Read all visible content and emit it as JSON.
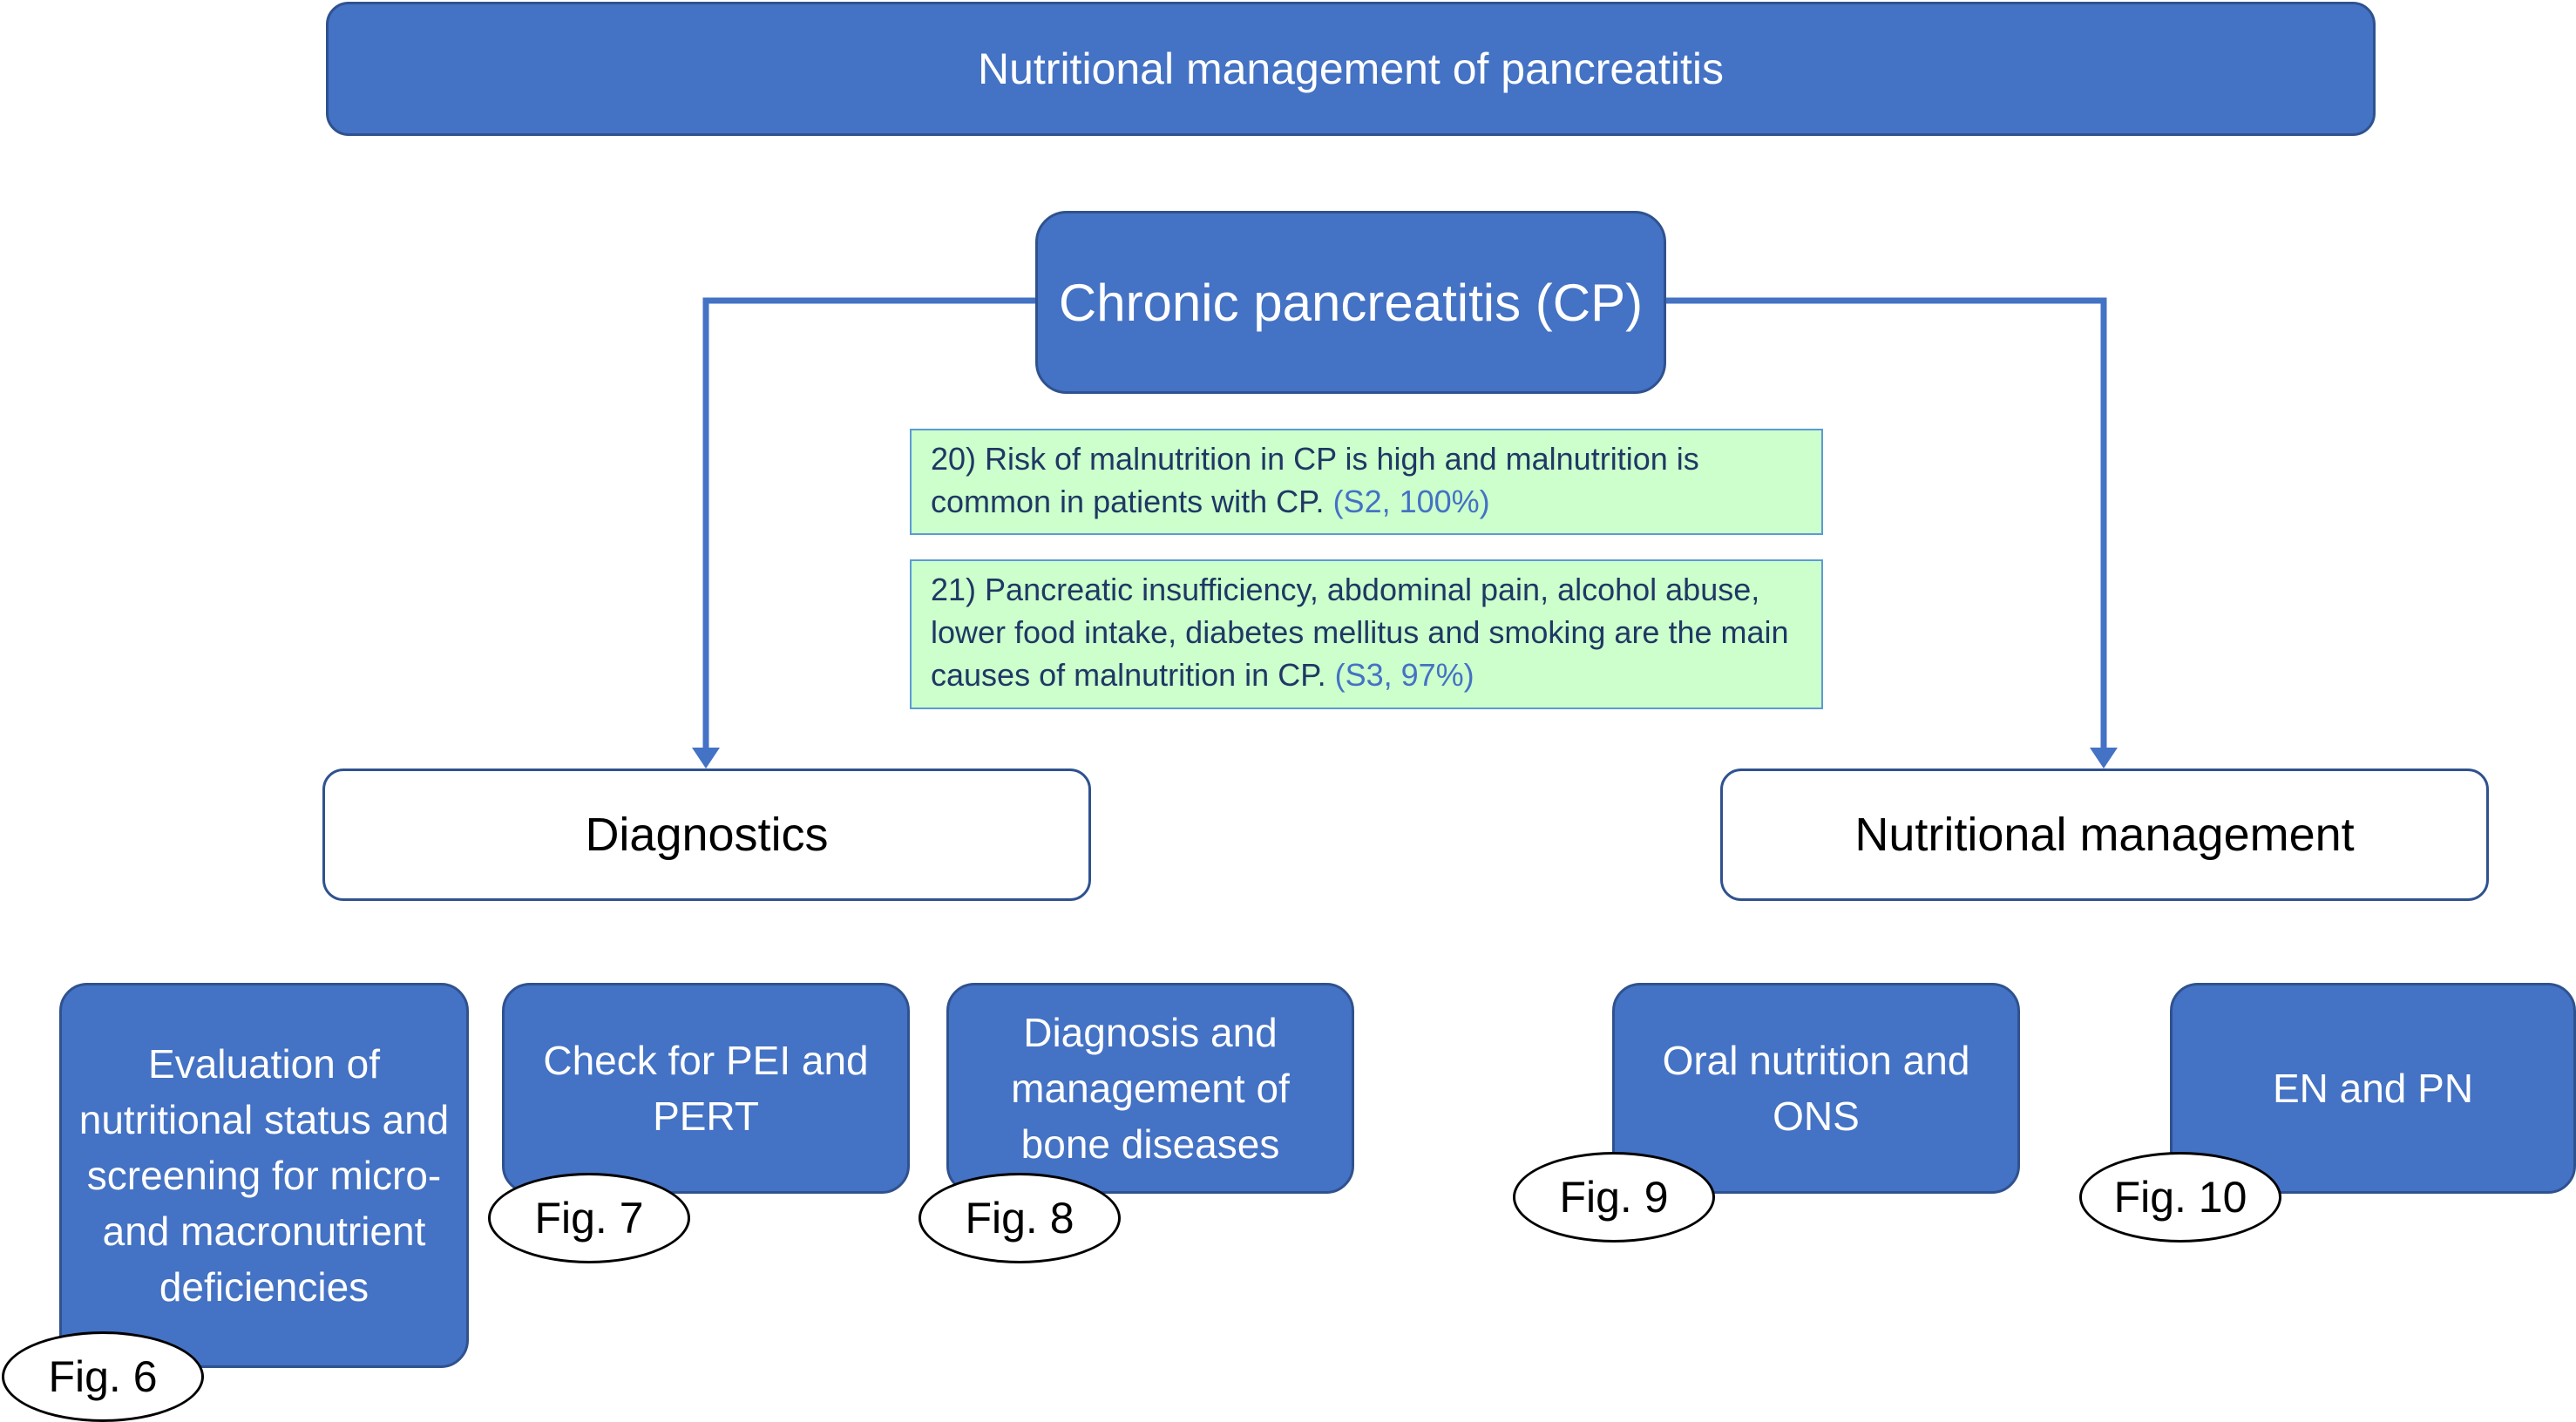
{
  "title": "Nutritional management of pancreatitis",
  "center": {
    "label": "Chronic pancreatitis (CP)"
  },
  "statements": [
    {
      "text": "20) Risk of malnutrition in CP is high and malnutrition is common in patients with CP.",
      "ref": "(S2, 100%)"
    },
    {
      "text": "21) Pancreatic insufficiency, abdominal pain, alcohol abuse, lower food intake, diabetes mellitus and smoking are the main causes of malnutrition in CP.",
      "ref": "(S3, 97%)"
    }
  ],
  "branches": {
    "diagnostics": "Diagnostics",
    "management": "Nutritional management"
  },
  "topics": [
    {
      "label": "Evaluation of nutritional status and screening for micro- and macronutrient deficiencies",
      "fig": "Fig. 6"
    },
    {
      "label": "Check for PEI and PERT",
      "fig": "Fig. 7"
    },
    {
      "label": "Diagnosis and management of bone diseases",
      "fig": "Fig. 8"
    },
    {
      "label": "Oral nutrition and ONS",
      "fig": "Fig. 9"
    },
    {
      "label": "EN and PN",
      "fig": "Fig. 10"
    }
  ],
  "colors": {
    "primary": "#4472C4",
    "border": "#2F528F",
    "note_fill": "#CCFFCC",
    "note_text": "#1F3864"
  }
}
